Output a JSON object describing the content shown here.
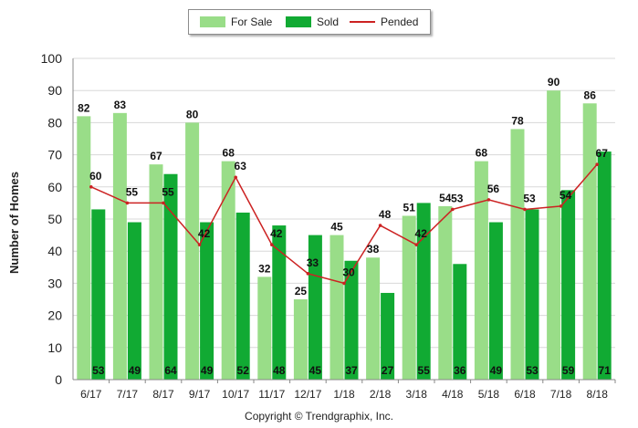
{
  "chart_data": {
    "type": "bar",
    "categories": [
      "6/17",
      "7/17",
      "8/17",
      "9/17",
      "10/17",
      "11/17",
      "12/17",
      "1/18",
      "2/18",
      "3/18",
      "4/18",
      "5/18",
      "6/18",
      "7/18",
      "8/18"
    ],
    "series": [
      {
        "name": "For Sale",
        "type": "bar",
        "color": "#99dd88",
        "values": [
          82,
          83,
          67,
          80,
          68,
          32,
          25,
          45,
          38,
          51,
          54,
          68,
          78,
          90,
          86
        ]
      },
      {
        "name": "Sold",
        "type": "bar",
        "color": "#11aa33",
        "values": [
          53,
          49,
          64,
          49,
          52,
          48,
          45,
          37,
          27,
          55,
          36,
          49,
          53,
          59,
          71
        ]
      },
      {
        "name": "Pended",
        "type": "line",
        "color": "#cc2222",
        "values": [
          60,
          55,
          55,
          42,
          63,
          42,
          33,
          30,
          48,
          42,
          53,
          56,
          53,
          54,
          67
        ]
      }
    ],
    "ylabel": "Number of Homes",
    "ylim": [
      0,
      100
    ],
    "yticks": [
      0,
      10,
      20,
      30,
      40,
      50,
      60,
      70,
      80,
      90,
      100
    ],
    "grid": true,
    "legend": "top-center",
    "footer": "Copyright © Trendgraphix, Inc."
  }
}
